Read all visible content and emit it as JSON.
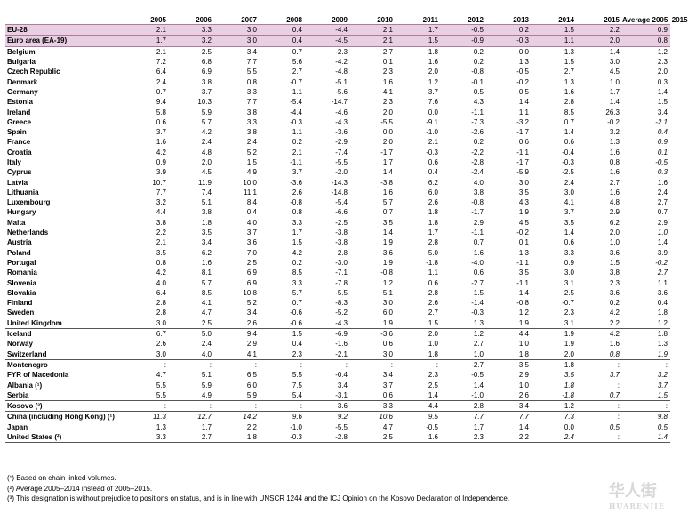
{
  "columns": [
    "",
    "2005",
    "2006",
    "2007",
    "2008",
    "2009",
    "2010",
    "2011",
    "2012",
    "2013",
    "2014",
    "2015",
    "Average 2005–2015"
  ],
  "rows": [
    {
      "name": "EU-28",
      "cls": "agg",
      "v": [
        "2.1",
        "3.3",
        "3.0",
        "0.4",
        "-4.4",
        "2.1",
        "1.7",
        "-0.5",
        "0.2",
        "1.5",
        "2.2",
        "0.9"
      ]
    },
    {
      "name": "Euro area (EA-19)",
      "cls": "agg agg2",
      "v": [
        "1.7",
        "3.2",
        "3.0",
        "0.4",
        "-4.5",
        "2.1",
        "1.5",
        "-0.9",
        "-0.3",
        "1.1",
        "2.0",
        "0.8"
      ]
    },
    {
      "name": "Belgium",
      "cls": "",
      "v": [
        "2.1",
        "2.5",
        "3.4",
        "0.7",
        "-2.3",
        "2.7",
        "1.8",
        "0.2",
        "0.0",
        "1.3",
        "1.4",
        "1.2"
      ]
    },
    {
      "name": "Bulgaria",
      "cls": "",
      "v": [
        "7.2",
        "6.8",
        "7.7",
        "5.6",
        "-4.2",
        "0.1",
        "1.6",
        "0.2",
        "1.3",
        "1.5",
        "3.0",
        "2.3"
      ]
    },
    {
      "name": "Czech Republic",
      "cls": "",
      "v": [
        "6.4",
        "6.9",
        "5.5",
        "2.7",
        "-4.8",
        "2.3",
        "2.0",
        "-0.8",
        "-0.5",
        "2.7",
        "4.5",
        "2.0"
      ]
    },
    {
      "name": "Denmark",
      "cls": "",
      "v": [
        "2.4",
        "3.8",
        "0.8",
        "-0.7",
        "-5.1",
        "1.6",
        "1.2",
        "-0.1",
        "-0.2",
        "1.3",
        "1.0",
        "0.3"
      ]
    },
    {
      "name": "Germany",
      "cls": "",
      "v": [
        "0.7",
        "3.7",
        "3.3",
        "1.1",
        "-5.6",
        "4.1",
        "3.7",
        "0.5",
        "0.5",
        "1.6",
        "1.7",
        "1.4"
      ]
    },
    {
      "name": "Estonia",
      "cls": "",
      "v": [
        "9.4",
        "10.3",
        "7.7",
        "-5.4",
        "-14.7",
        "2.3",
        "7.6",
        "4.3",
        "1.4",
        "2.8",
        "1.4",
        "1.5"
      ]
    },
    {
      "name": "Ireland",
      "cls": "",
      "v": [
        "5.8",
        "5.9",
        "3.8",
        "-4.4",
        "-4.6",
        "2.0",
        "0.0",
        "-1.1",
        "1.1",
        "8.5",
        "26.3",
        "3.4"
      ]
    },
    {
      "name": "Greece",
      "cls": "",
      "v": [
        "0.6",
        "5.7",
        "3.3",
        "-0.3",
        "-4.3",
        "-5.5",
        "-9.1",
        "-7.3",
        "-3.2",
        "0.7",
        "-0.2",
        "-2.1"
      ],
      "it": [
        11
      ]
    },
    {
      "name": "Spain",
      "cls": "",
      "v": [
        "3.7",
        "4.2",
        "3.8",
        "1.1",
        "-3.6",
        "0.0",
        "-1.0",
        "-2.6",
        "-1.7",
        "1.4",
        "3.2",
        "0.4"
      ],
      "it": [
        11
      ]
    },
    {
      "name": "France",
      "cls": "",
      "v": [
        "1.6",
        "2.4",
        "2.4",
        "0.2",
        "-2.9",
        "2.0",
        "2.1",
        "0.2",
        "0.6",
        "0.6",
        "1.3",
        "0.9"
      ],
      "it": [
        11
      ]
    },
    {
      "name": "Croatia",
      "cls": "",
      "v": [
        "4.2",
        "4.8",
        "5.2",
        "2.1",
        "-7.4",
        "-1.7",
        "-0.3",
        "-2.2",
        "-1.1",
        "-0.4",
        "1.6",
        "0.1"
      ],
      "it": [
        11
      ]
    },
    {
      "name": "Italy",
      "cls": "",
      "v": [
        "0.9",
        "2.0",
        "1.5",
        "-1.1",
        "-5.5",
        "1.7",
        "0.6",
        "-2.8",
        "-1.7",
        "-0.3",
        "0.8",
        "-0.5"
      ],
      "it": [
        11
      ]
    },
    {
      "name": "Cyprus",
      "cls": "",
      "v": [
        "3.9",
        "4.5",
        "4.9",
        "3.7",
        "-2.0",
        "1.4",
        "0.4",
        "-2.4",
        "-5.9",
        "-2.5",
        "1.6",
        "0.3"
      ],
      "it": [
        11
      ]
    },
    {
      "name": "Latvia",
      "cls": "",
      "v": [
        "10.7",
        "11.9",
        "10.0",
        "-3.6",
        "-14.3",
        "-3.8",
        "6.2",
        "4.0",
        "3.0",
        "2.4",
        "2.7",
        "1.6"
      ]
    },
    {
      "name": "Lithuania",
      "cls": "",
      "v": [
        "7.7",
        "7.4",
        "11.1",
        "2.6",
        "-14.8",
        "1.6",
        "6.0",
        "3.8",
        "3.5",
        "3.0",
        "1.6",
        "2.4"
      ]
    },
    {
      "name": "Luxembourg",
      "cls": "",
      "v": [
        "3.2",
        "5.1",
        "8.4",
        "-0.8",
        "-5.4",
        "5.7",
        "2.6",
        "-0.8",
        "4.3",
        "4.1",
        "4.8",
        "2.7"
      ]
    },
    {
      "name": "Hungary",
      "cls": "",
      "v": [
        "4.4",
        "3.8",
        "0.4",
        "0.8",
        "-6.6",
        "0.7",
        "1.8",
        "-1.7",
        "1.9",
        "3.7",
        "2.9",
        "0.7"
      ]
    },
    {
      "name": "Malta",
      "cls": "",
      "v": [
        "3.8",
        "1.8",
        "4.0",
        "3.3",
        "-2.5",
        "3.5",
        "1.8",
        "2.9",
        "4.5",
        "3.5",
        "6.2",
        "2.9"
      ]
    },
    {
      "name": "Netherlands",
      "cls": "",
      "v": [
        "2.2",
        "3.5",
        "3.7",
        "1.7",
        "-3.8",
        "1.4",
        "1.7",
        "-1.1",
        "-0.2",
        "1.4",
        "2.0",
        "1.0"
      ],
      "it": [
        11
      ]
    },
    {
      "name": "Austria",
      "cls": "",
      "v": [
        "2.1",
        "3.4",
        "3.6",
        "1.5",
        "-3.8",
        "1.9",
        "2.8",
        "0.7",
        "0.1",
        "0.6",
        "1.0",
        "1.4"
      ]
    },
    {
      "name": "Poland",
      "cls": "",
      "v": [
        "3.5",
        "6.2",
        "7.0",
        "4.2",
        "2.8",
        "3.6",
        "5.0",
        "1.6",
        "1.3",
        "3.3",
        "3.6",
        "3.9"
      ]
    },
    {
      "name": "Portugal",
      "cls": "",
      "v": [
        "0.8",
        "1.6",
        "2.5",
        "0.2",
        "-3.0",
        "1.9",
        "-1.8",
        "-4.0",
        "-1.1",
        "0.9",
        "1.5",
        "-0.2"
      ],
      "it": [
        11
      ]
    },
    {
      "name": "Romania",
      "cls": "",
      "v": [
        "4.2",
        "8.1",
        "6.9",
        "8.5",
        "-7.1",
        "-0.8",
        "1.1",
        "0.6",
        "3.5",
        "3.0",
        "3.8",
        "2.7"
      ],
      "it": [
        11
      ]
    },
    {
      "name": "Slovenia",
      "cls": "",
      "v": [
        "4.0",
        "5.7",
        "6.9",
        "3.3",
        "-7.8",
        "1.2",
        "0.6",
        "-2.7",
        "-1.1",
        "3.1",
        "2.3",
        "1.1"
      ]
    },
    {
      "name": "Slovakia",
      "cls": "",
      "v": [
        "6.4",
        "8.5",
        "10.8",
        "5.7",
        "-5.5",
        "5.1",
        "2.8",
        "1.5",
        "1.4",
        "2.5",
        "3.6",
        "3.6"
      ]
    },
    {
      "name": "Finland",
      "cls": "",
      "v": [
        "2.8",
        "4.1",
        "5.2",
        "0.7",
        "-8.3",
        "3.0",
        "2.6",
        "-1.4",
        "-0.8",
        "-0.7",
        "0.2",
        "0.4"
      ]
    },
    {
      "name": "Sweden",
      "cls": "",
      "v": [
        "2.8",
        "4.7",
        "3.4",
        "-0.6",
        "-5.2",
        "6.0",
        "2.7",
        "-0.3",
        "1.2",
        "2.3",
        "4.2",
        "1.8"
      ]
    },
    {
      "name": "United Kingdom",
      "cls": "",
      "v": [
        "3.0",
        "2.5",
        "2.6",
        "-0.6",
        "-4.3",
        "1.9",
        "1.5",
        "1.3",
        "1.9",
        "3.1",
        "2.2",
        "1.2"
      ]
    },
    {
      "name": "Iceland",
      "cls": "sep",
      "v": [
        "6.7",
        "5.0",
        "9.4",
        "1.5",
        "-6.9",
        "-3.6",
        "2.0",
        "1.2",
        "4.4",
        "1.9",
        "4.2",
        "1.8"
      ]
    },
    {
      "name": "Norway",
      "cls": "",
      "v": [
        "2.6",
        "2.4",
        "2.9",
        "0.4",
        "-1.6",
        "0.6",
        "1.0",
        "2.7",
        "1.0",
        "1.9",
        "1.6",
        "1.3"
      ]
    },
    {
      "name": "Switzerland",
      "cls": "",
      "v": [
        "3.0",
        "4.0",
        "4.1",
        "2.3",
        "-2.1",
        "3.0",
        "1.8",
        "1.0",
        "1.8",
        "2.0",
        "0.8",
        "1.9"
      ],
      "it": [
        10,
        11
      ]
    },
    {
      "name": "Montenegro",
      "cls": "sep",
      "v": [
        ":",
        ":",
        ":",
        ":",
        ":",
        ":",
        ":",
        "-2.7",
        "3.5",
        "1.8",
        ":",
        ":"
      ]
    },
    {
      "name": "FYR of Macedonia",
      "cls": "",
      "v": [
        "4.7",
        "5.1",
        "6.5",
        "5.5",
        "-0.4",
        "3.4",
        "2.3",
        "-0.5",
        "2.9",
        "3.5",
        "3.7",
        "3.2"
      ],
      "it": [
        9,
        10,
        11
      ]
    },
    {
      "name": "Albania (¹)",
      "cls": "",
      "v": [
        "5.5",
        "5.9",
        "6.0",
        "7.5",
        "3.4",
        "3.7",
        "2.5",
        "1.4",
        "1.0",
        "1.8",
        ":",
        "3.7"
      ],
      "it": [
        9,
        11
      ]
    },
    {
      "name": "Serbia",
      "cls": "",
      "v": [
        "5.5",
        "4.9",
        "5.9",
        "5.4",
        "-3.1",
        "0.6",
        "1.4",
        "-1.0",
        "2.6",
        "-1.8",
        "0.7",
        "1.5"
      ],
      "it": [
        9,
        10,
        11
      ]
    },
    {
      "name": "Kosovo (³)",
      "cls": "sep",
      "v": [
        ":",
        ":",
        ":",
        ":",
        "3.6",
        "3.3",
        "4.4",
        "2.8",
        "3.4",
        "1.2",
        ":",
        ":"
      ]
    },
    {
      "name": "China (including Hong Kong) (¹)",
      "cls": "sep",
      "v": [
        "11.3",
        "12.7",
        "14.2",
        "9.6",
        "9.2",
        "10.6",
        "9.5",
        "7.7",
        "7.7",
        "7.3",
        ":",
        "9.8"
      ],
      "it": [
        0,
        1,
        2,
        3,
        4,
        5,
        6,
        7,
        8,
        9,
        11
      ]
    },
    {
      "name": "Japan",
      "cls": "",
      "v": [
        "1.3",
        "1.7",
        "2.2",
        "-1.0",
        "-5.5",
        "4.7",
        "-0.5",
        "1.7",
        "1.4",
        "0.0",
        "0.5",
        "0.5"
      ],
      "it": [
        10,
        11
      ]
    },
    {
      "name": "United States (²)",
      "cls": "last",
      "v": [
        "3.3",
        "2.7",
        "1.8",
        "-0.3",
        "-2.8",
        "2.5",
        "1.6",
        "2.3",
        "2.2",
        "2.4",
        ":",
        "1.4"
      ],
      "it": [
        9,
        11
      ]
    }
  ],
  "notes": [
    "(¹) Based on chain linked volumes.",
    "(²) Average 2005–2014 instead of 2005–2015.",
    "(³) This designation is without prejudice to positions on status, and is in line with UNSCR 1244 and the ICJ Opinion on the Kosovo Declaration of Independence."
  ],
  "watermark": {
    "cn": "华人街",
    "en": "HUARENJIE"
  }
}
